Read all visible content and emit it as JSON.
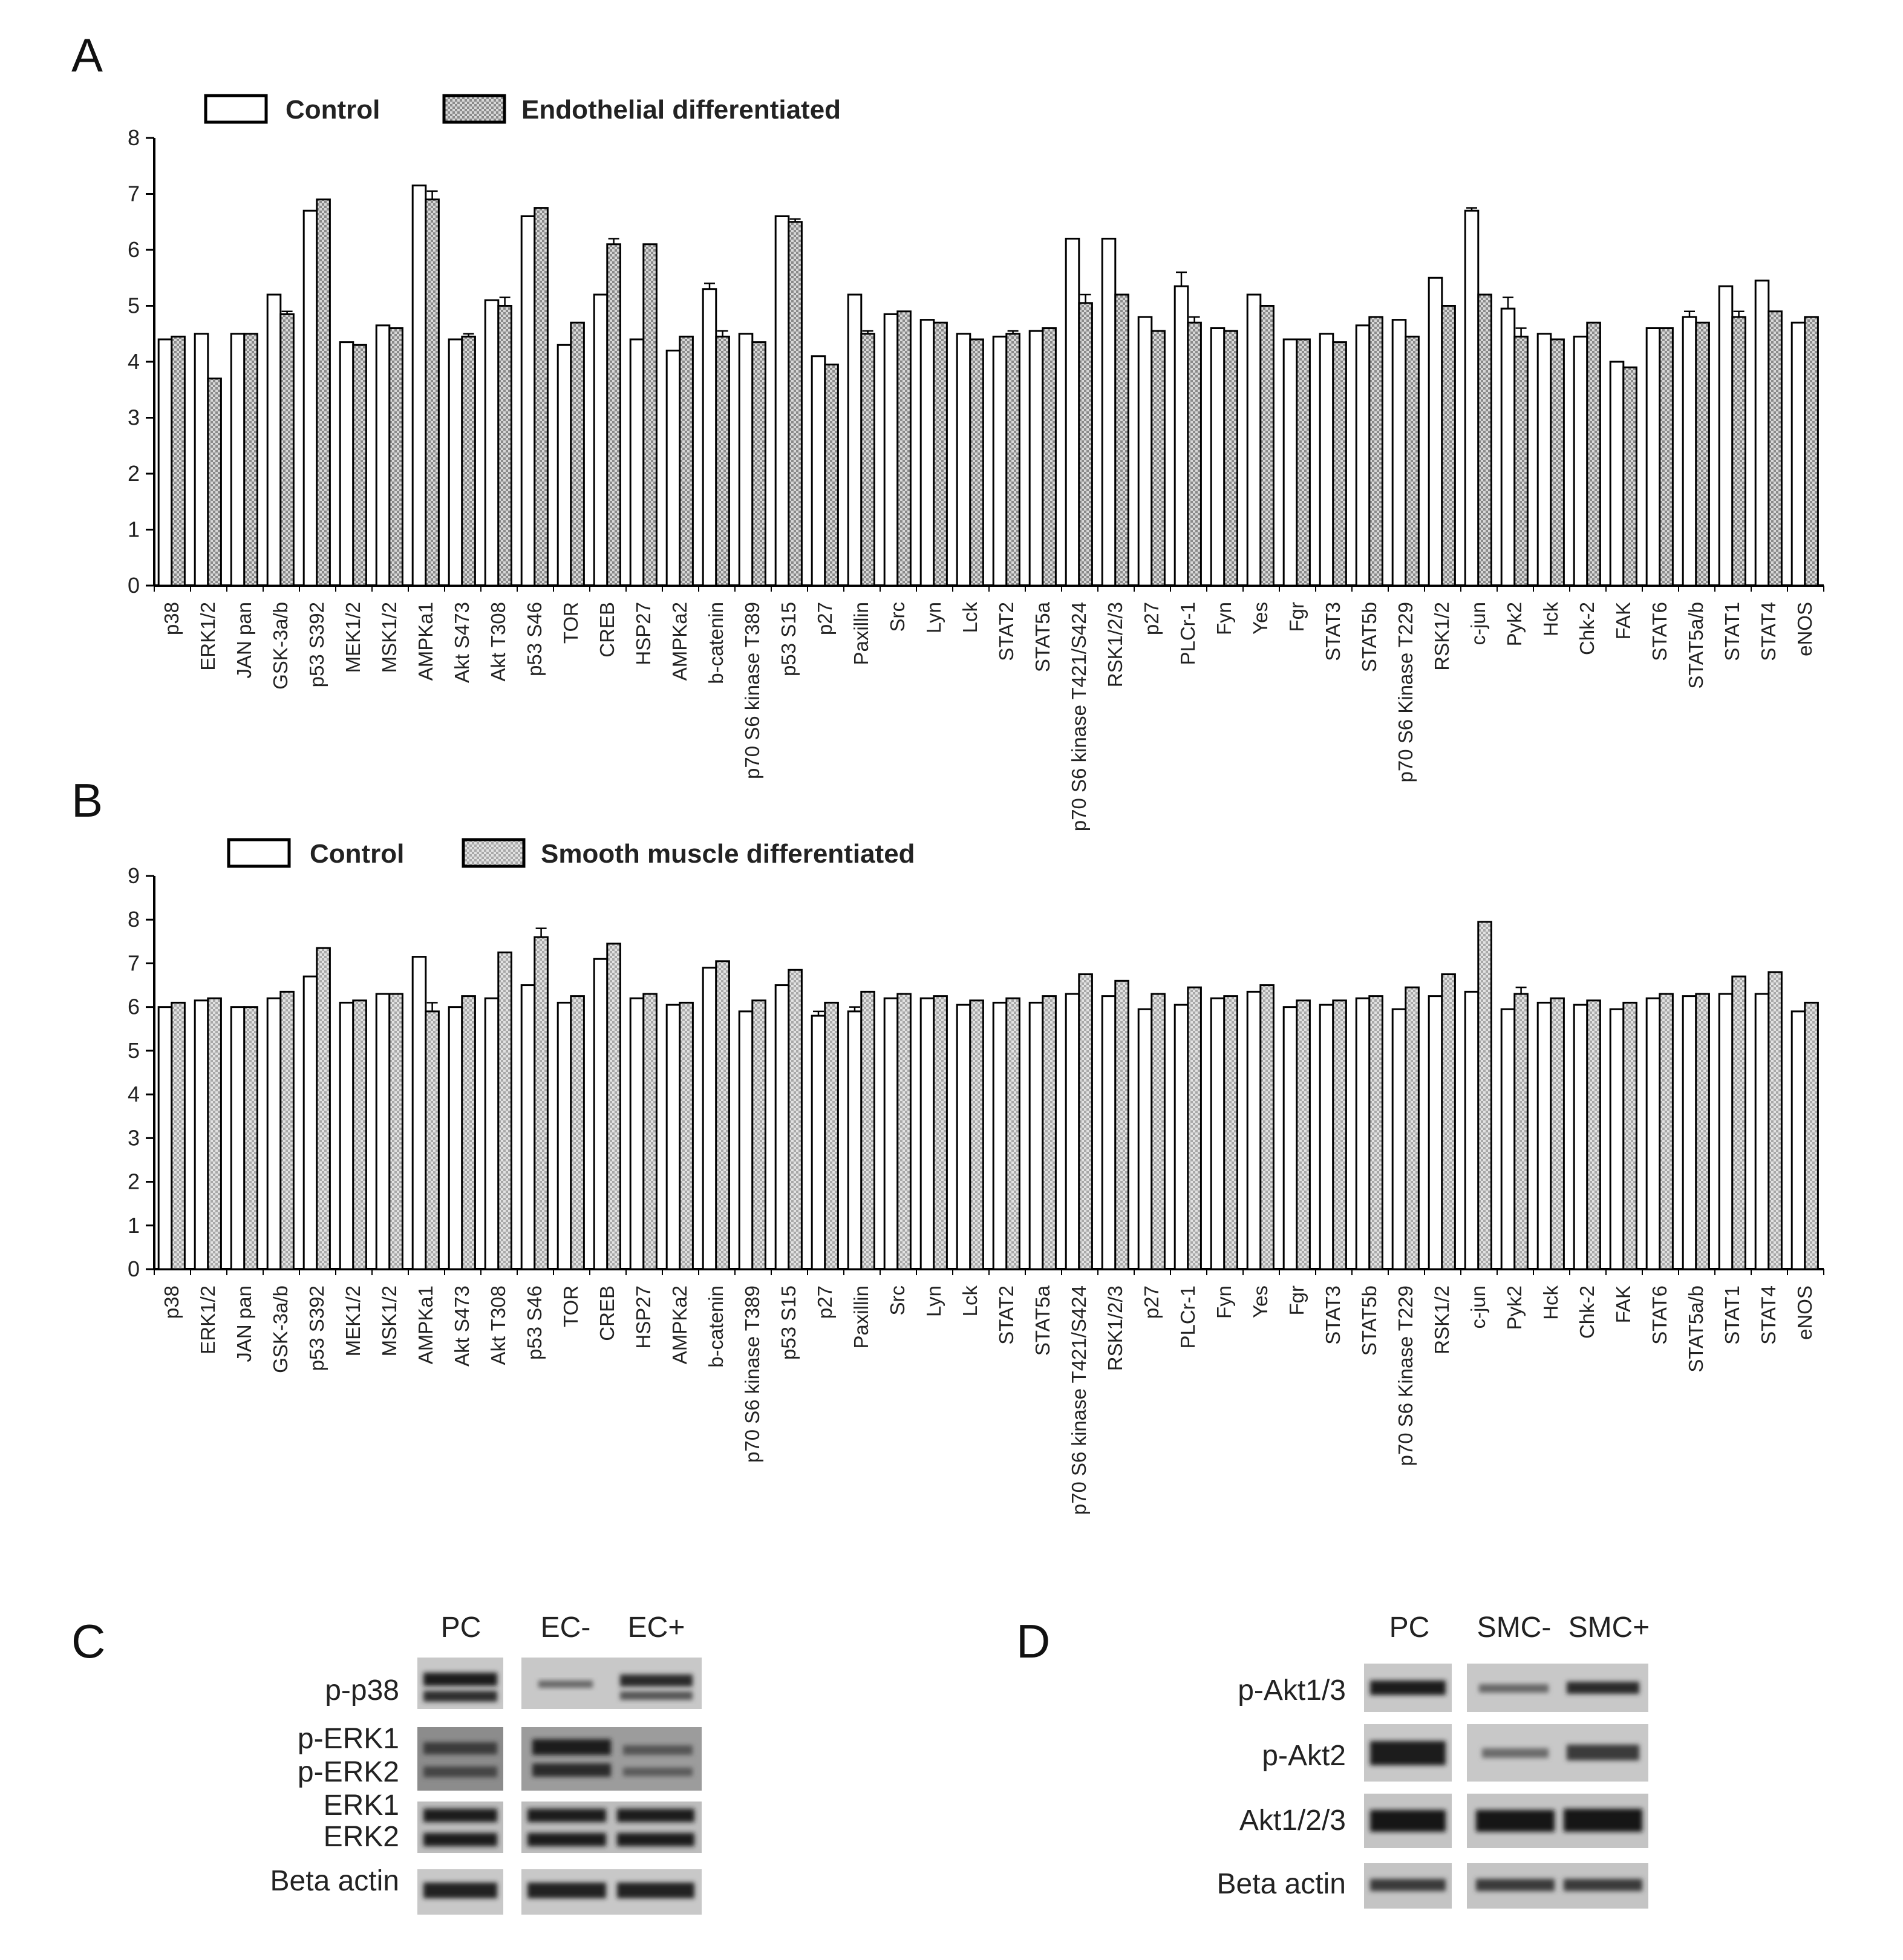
{
  "colors": {
    "control_fill": "#ffffff",
    "treated_fill": "#9a9a9a",
    "axis": "#000000",
    "blot_bg": "#c4c4c4",
    "band": "#1e1e1e"
  },
  "chart_data": [
    {
      "panel": "A",
      "type": "bar",
      "title": "",
      "xlabel": "",
      "ylabel": "",
      "ylim": [
        0,
        8
      ],
      "yticks": [
        "0",
        "1",
        "2",
        "3",
        "4",
        "5",
        "6",
        "7",
        "8"
      ],
      "legend_position": "top-left",
      "categories": [
        "p38",
        "ERK1/2",
        "JAN pan",
        "GSK-3a/b",
        "p53 S392",
        "MEK1/2",
        "MSK1/2",
        "AMPKa1",
        "Akt S473",
        "Akt T308",
        "p53 S46",
        "TOR",
        "CREB",
        "HSP27",
        "AMPKa2",
        "b-catenin",
        "p70 S6 kinase T389",
        "p53 S15",
        "p27",
        "Paxillin",
        "Src",
        "Lyn",
        "Lck",
        "STAT2",
        "STAT5a",
        "p70 S6 kinase T421/S424",
        "RSK1/2/3",
        "p27",
        "PLCr-1",
        "Fyn",
        "Yes",
        "Fgr",
        "STAT3",
        "STAT5b",
        "p70 S6 Kinase T229",
        "RSK1/2",
        "c-jun",
        "Pyk2",
        "Hck",
        "Chk-2",
        "FAK",
        "STAT6",
        "STAT5a/b",
        "STAT1",
        "STAT4",
        "eNOS"
      ],
      "series": [
        {
          "name": "Control",
          "values": [
            4.4,
            4.5,
            4.5,
            5.2,
            6.7,
            4.35,
            4.65,
            7.15,
            4.4,
            5.1,
            6.6,
            4.3,
            5.2,
            4.4,
            4.2,
            5.3,
            4.5,
            6.6,
            4.1,
            5.2,
            4.85,
            4.75,
            4.5,
            4.45,
            4.55,
            6.2,
            6.2,
            4.8,
            5.35,
            4.6,
            5.2,
            4.4,
            4.5,
            4.65,
            4.75,
            5.5,
            6.7,
            4.95,
            4.5,
            4.45,
            4.0,
            4.6,
            4.8,
            5.35,
            5.45,
            4.7
          ],
          "errors": [
            0,
            0,
            0,
            0,
            0,
            0,
            0,
            0,
            0,
            0,
            0,
            0,
            0,
            0,
            0,
            0.1,
            0,
            0,
            0,
            0,
            0,
            0,
            0,
            0,
            0,
            0,
            0,
            0,
            0.25,
            0,
            0,
            0,
            0,
            0,
            0,
            0,
            0.05,
            0.2,
            0,
            0,
            0,
            0,
            0.1,
            0,
            0,
            0
          ]
        },
        {
          "name": "Endothelial differentiated",
          "values": [
            4.45,
            3.7,
            4.5,
            4.85,
            6.9,
            4.3,
            4.6,
            6.9,
            4.45,
            5.0,
            6.75,
            4.7,
            6.1,
            6.1,
            4.45,
            4.45,
            4.35,
            6.5,
            3.95,
            4.5,
            4.9,
            4.7,
            4.4,
            4.5,
            4.6,
            5.05,
            5.2,
            4.55,
            4.7,
            4.55,
            5.0,
            4.4,
            4.35,
            4.8,
            4.45,
            5.0,
            5.2,
            4.45,
            4.4,
            4.7,
            3.9,
            4.6,
            4.7,
            4.8,
            4.9,
            4.8
          ],
          "errors": [
            0,
            0,
            0,
            0.05,
            0,
            0,
            0,
            0.15,
            0.05,
            0.15,
            0,
            0,
            0.1,
            0,
            0,
            0.1,
            0,
            0.05,
            0,
            0.05,
            0,
            0,
            0,
            0.05,
            0,
            0.15,
            0,
            0,
            0.1,
            0,
            0,
            0,
            0,
            0,
            0,
            0,
            0,
            0.15,
            0,
            0,
            0,
            0,
            0,
            0.1,
            0,
            0
          ]
        }
      ]
    },
    {
      "panel": "B",
      "type": "bar",
      "title": "",
      "xlabel": "",
      "ylabel": "",
      "ylim": [
        0,
        9
      ],
      "yticks": [
        "0",
        "1",
        "2",
        "3",
        "4",
        "5",
        "6",
        "7",
        "8",
        "9"
      ],
      "legend_position": "top-left",
      "categories": [
        "p38",
        "ERK1/2",
        "JAN pan",
        "GSK-3a/b",
        "p53 S392",
        "MEK1/2",
        "MSK1/2",
        "AMPKa1",
        "Akt S473",
        "Akt T308",
        "p53 S46",
        "TOR",
        "CREB",
        "HSP27",
        "AMPKa2",
        "b-catenin",
        "p70 S6 kinase T389",
        "p53 S15",
        "p27",
        "Paxillin",
        "Src",
        "Lyn",
        "Lck",
        "STAT2",
        "STAT5a",
        "p70 S6 kinase T421/S424",
        "RSK1/2/3",
        "p27",
        "PLCr-1",
        "Fyn",
        "Yes",
        "Fgr",
        "STAT3",
        "STAT5b",
        "p70 S6 Kinase T229",
        "RSK1/2",
        "c-jun",
        "Pyk2",
        "Hck",
        "Chk-2",
        "FAK",
        "STAT6",
        "STAT5a/b",
        "STAT1",
        "STAT4",
        "eNOS"
      ],
      "series": [
        {
          "name": "Control",
          "values": [
            6.0,
            6.15,
            6.0,
            6.2,
            6.7,
            6.1,
            6.3,
            7.15,
            6.0,
            6.2,
            6.5,
            6.1,
            7.1,
            6.2,
            6.05,
            6.9,
            5.9,
            6.5,
            5.8,
            5.9,
            6.2,
            6.2,
            6.05,
            6.1,
            6.1,
            6.3,
            6.25,
            5.95,
            6.05,
            6.2,
            6.35,
            6.0,
            6.05,
            6.2,
            5.95,
            6.25,
            6.35,
            5.95,
            6.1,
            6.05,
            5.95,
            6.2,
            6.25,
            6.3,
            6.3,
            5.9
          ],
          "errors": [
            0,
            0,
            0,
            0,
            0,
            0,
            0,
            0,
            0,
            0,
            0,
            0,
            0,
            0,
            0,
            0,
            0,
            0,
            0.1,
            0.1,
            0,
            0,
            0,
            0,
            0,
            0,
            0,
            0,
            0,
            0,
            0,
            0,
            0,
            0,
            0,
            0,
            0,
            0,
            0,
            0,
            0,
            0,
            0,
            0,
            0,
            0
          ]
        },
        {
          "name": "Smooth muscle differentiated",
          "values": [
            6.1,
            6.2,
            6.0,
            6.35,
            7.35,
            6.15,
            6.3,
            5.9,
            6.25,
            7.25,
            7.6,
            6.25,
            7.45,
            6.3,
            6.1,
            7.05,
            6.15,
            6.85,
            6.1,
            6.35,
            6.3,
            6.25,
            6.15,
            6.2,
            6.25,
            6.75,
            6.6,
            6.3,
            6.45,
            6.25,
            6.5,
            6.15,
            6.15,
            6.25,
            6.45,
            6.75,
            7.95,
            6.3,
            6.2,
            6.15,
            6.1,
            6.3,
            6.3,
            6.7,
            6.8,
            6.1
          ],
          "errors": [
            0,
            0,
            0,
            0,
            0,
            0,
            0,
            0.2,
            0,
            0,
            0.2,
            0,
            0,
            0,
            0,
            0,
            0,
            0,
            0,
            0,
            0,
            0,
            0,
            0,
            0,
            0,
            0,
            0,
            0,
            0,
            0,
            0,
            0,
            0,
            0,
            0,
            0,
            0.15,
            0,
            0,
            0,
            0,
            0,
            0,
            0,
            0
          ]
        }
      ]
    }
  ],
  "panels": {
    "a": {
      "letter": "A",
      "legend": [
        "Control",
        "Endothelial differentiated"
      ]
    },
    "b": {
      "letter": "B",
      "legend": [
        "Control",
        "Smooth muscle differentiated"
      ]
    },
    "c": {
      "letter": "C",
      "lanes": [
        "PC",
        "EC-",
        "EC+"
      ],
      "rows": [
        "p-p38",
        "p-ERK1",
        "p-ERK2",
        "ERK1",
        "ERK2",
        "Beta actin"
      ]
    },
    "d": {
      "letter": "D",
      "lanes": [
        "PC",
        "SMC-",
        "SMC+"
      ],
      "rows": [
        "p-Akt1/3",
        "p-Akt2",
        "Akt1/2/3",
        "Beta actin"
      ]
    }
  }
}
